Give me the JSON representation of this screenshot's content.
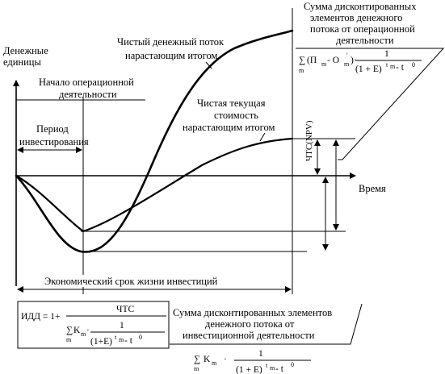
{
  "axes": {
    "y_label_line1": "Денежные",
    "y_label_line2": "единицы",
    "x_label": "Время"
  },
  "labels": {
    "net_cash_flow_line1": "Чистый денежный поток",
    "net_cash_flow_line2": "нарастающим итогом",
    "operation_start_line1": "Начало операционной",
    "operation_start_line2": "деятельности",
    "npv_cumulative_line1": "Чистая текущая",
    "npv_cumulative_line2": "стоимость",
    "npv_cumulative_line3": "нарастающим итогом",
    "investment_period_line1": "Период",
    "investment_period_line2": "инвестирования",
    "economic_life": "Экономический срок жизни инвестиций",
    "npv_bracket": "ЧТС(NPV)"
  },
  "top_right_box": {
    "line1": "Сумма дисконтированных",
    "line2": "элементов денежного",
    "line3": "потока от операционной",
    "line4": "деятельности"
  },
  "bottom_right_box": {
    "line1": "Сумма дисконтированных элементов",
    "line2": "денежного потока от",
    "line3": "инвестиционной деятельности"
  },
  "formulas": {
    "sum_sign": "∑",
    "m": "m",
    "Pm": "(П",
    "minus_O": " - O",
    "prime": "′",
    "close_paren_dot": ")·",
    "one": "1",
    "denom_base": "(1 + E)",
    "t": "t",
    "minus_t": " - t",
    "zero": "0",
    "idd": "ИДД = 1+",
    "chts": "ЧТС",
    "K": "K",
    "dot": "·",
    "denom_base_tight": "(1+E)"
  }
}
